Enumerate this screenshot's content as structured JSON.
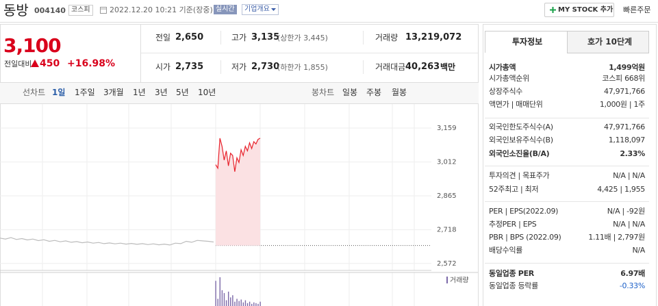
{
  "header": {
    "name": "동방",
    "code": "004140",
    "market": "코스피",
    "datetime": "2022.12.20 10:21 기준(장중)",
    "realtime": "실시간",
    "company_info": "기업개요",
    "my_stock": "MY STOCK 추가",
    "quick_order": "빠른주문"
  },
  "price": {
    "current": "3,100",
    "change_label": "전일대비",
    "change": "450",
    "change_rate": "+16.98%"
  },
  "summary": {
    "rows": [
      [
        {
          "label": "전일",
          "value": "2,650"
        },
        {
          "label": "고가",
          "value": "3,135",
          "note": "(상한가 3,445)"
        },
        {
          "label": "거래량",
          "value": "13,219,072"
        }
      ],
      [
        {
          "label": "시가",
          "value": "2,735"
        },
        {
          "label": "저가",
          "value": "2,730",
          "note": "(하한가 1,855)"
        },
        {
          "label": "거래대금",
          "value": "40,263",
          "note": "백만"
        }
      ]
    ]
  },
  "chart_tabs": {
    "line_label": "선차트",
    "line_periods": [
      "1일",
      "1주일",
      "3개월",
      "1년",
      "3년",
      "5년",
      "10년"
    ],
    "candle_label": "봉차트",
    "candle_periods": [
      "일봉",
      "주봉",
      "월봉"
    ]
  },
  "chart_data": {
    "type": "line",
    "ylim": [
      2542,
      3263
    ],
    "yticks": [
      {
        "value": 3159,
        "label": "3,159"
      },
      {
        "value": 3012,
        "label": "3,012"
      },
      {
        "value": 2865,
        "label": "2,865"
      },
      {
        "value": 2718,
        "label": "2,718"
      },
      {
        "value": 2572,
        "label": "2,572"
      }
    ],
    "grid": true,
    "baseline": 2650,
    "series": [
      {
        "color": "#bbbbbb",
        "values": [
          2682,
          2678,
          2684,
          2676,
          2680,
          2674,
          2678,
          2671,
          2675,
          2668,
          2672,
          2666,
          2670,
          2664,
          2667,
          2662,
          2665,
          2660,
          2663,
          2658,
          2661,
          2657,
          2660,
          2656,
          2659,
          2655,
          2658,
          2654,
          2657,
          2653,
          2656,
          2652,
          2660,
          2658,
          2668,
          2664,
          2672,
          2670,
          2668,
          2665
        ]
      },
      {
        "color": "#e8202a",
        "values": [
          3000,
          2985,
          3115,
          3080,
          3020,
          3060,
          2995,
          3050,
          3040,
          2970,
          3030,
          3010,
          3065,
          3040,
          3080,
          3060,
          3095,
          3070,
          3100,
          3090,
          3110,
          3115
        ]
      }
    ],
    "volume": {
      "label": "거래량",
      "color": "#7b68a8",
      "values": [
        35,
        10,
        40,
        22,
        18,
        8,
        20,
        12,
        15,
        6,
        10,
        7,
        9,
        5,
        8,
        4,
        6,
        3,
        5,
        4,
        3,
        6
      ]
    }
  },
  "invest": {
    "tabs": [
      "투자정보",
      "호가 10단계"
    ],
    "groups": [
      [
        {
          "label": "시가총액",
          "value": "1,499억원"
        },
        {
          "label": "시가총액순위",
          "value": "코스피 668위"
        },
        {
          "label": "상장주식수",
          "value": "47,971,766"
        },
        {
          "label": "액면가 | 매매단위",
          "value": "1,000원 | 1주"
        }
      ],
      [
        {
          "label": "외국인한도주식수(A)",
          "value": "47,971,766"
        },
        {
          "label": "외국인보유주식수(B)",
          "value": "1,118,097"
        },
        {
          "label": "외국인소진율(B/A)",
          "value": "2.33%"
        }
      ],
      [
        {
          "label": "투자의견 | 목표주가",
          "value": "N/A | N/A"
        },
        {
          "label": "52주최고 | 최저",
          "value": "4,425 | 1,955"
        }
      ],
      [
        {
          "label": "PER | EPS(2022.09)",
          "value": "N/A | -92원"
        },
        {
          "label": "추정PER | EPS",
          "value": "N/A | N/A"
        },
        {
          "label": "PBR | BPS (2022.09)",
          "value": "1.11배 | 2,797원"
        },
        {
          "label": "배당수익률",
          "value": "N/A"
        }
      ],
      [
        {
          "label": "동일업종 PER",
          "value": "6.97배"
        },
        {
          "label": "동일업종 등락률",
          "value": "-0.33%"
        }
      ]
    ]
  }
}
